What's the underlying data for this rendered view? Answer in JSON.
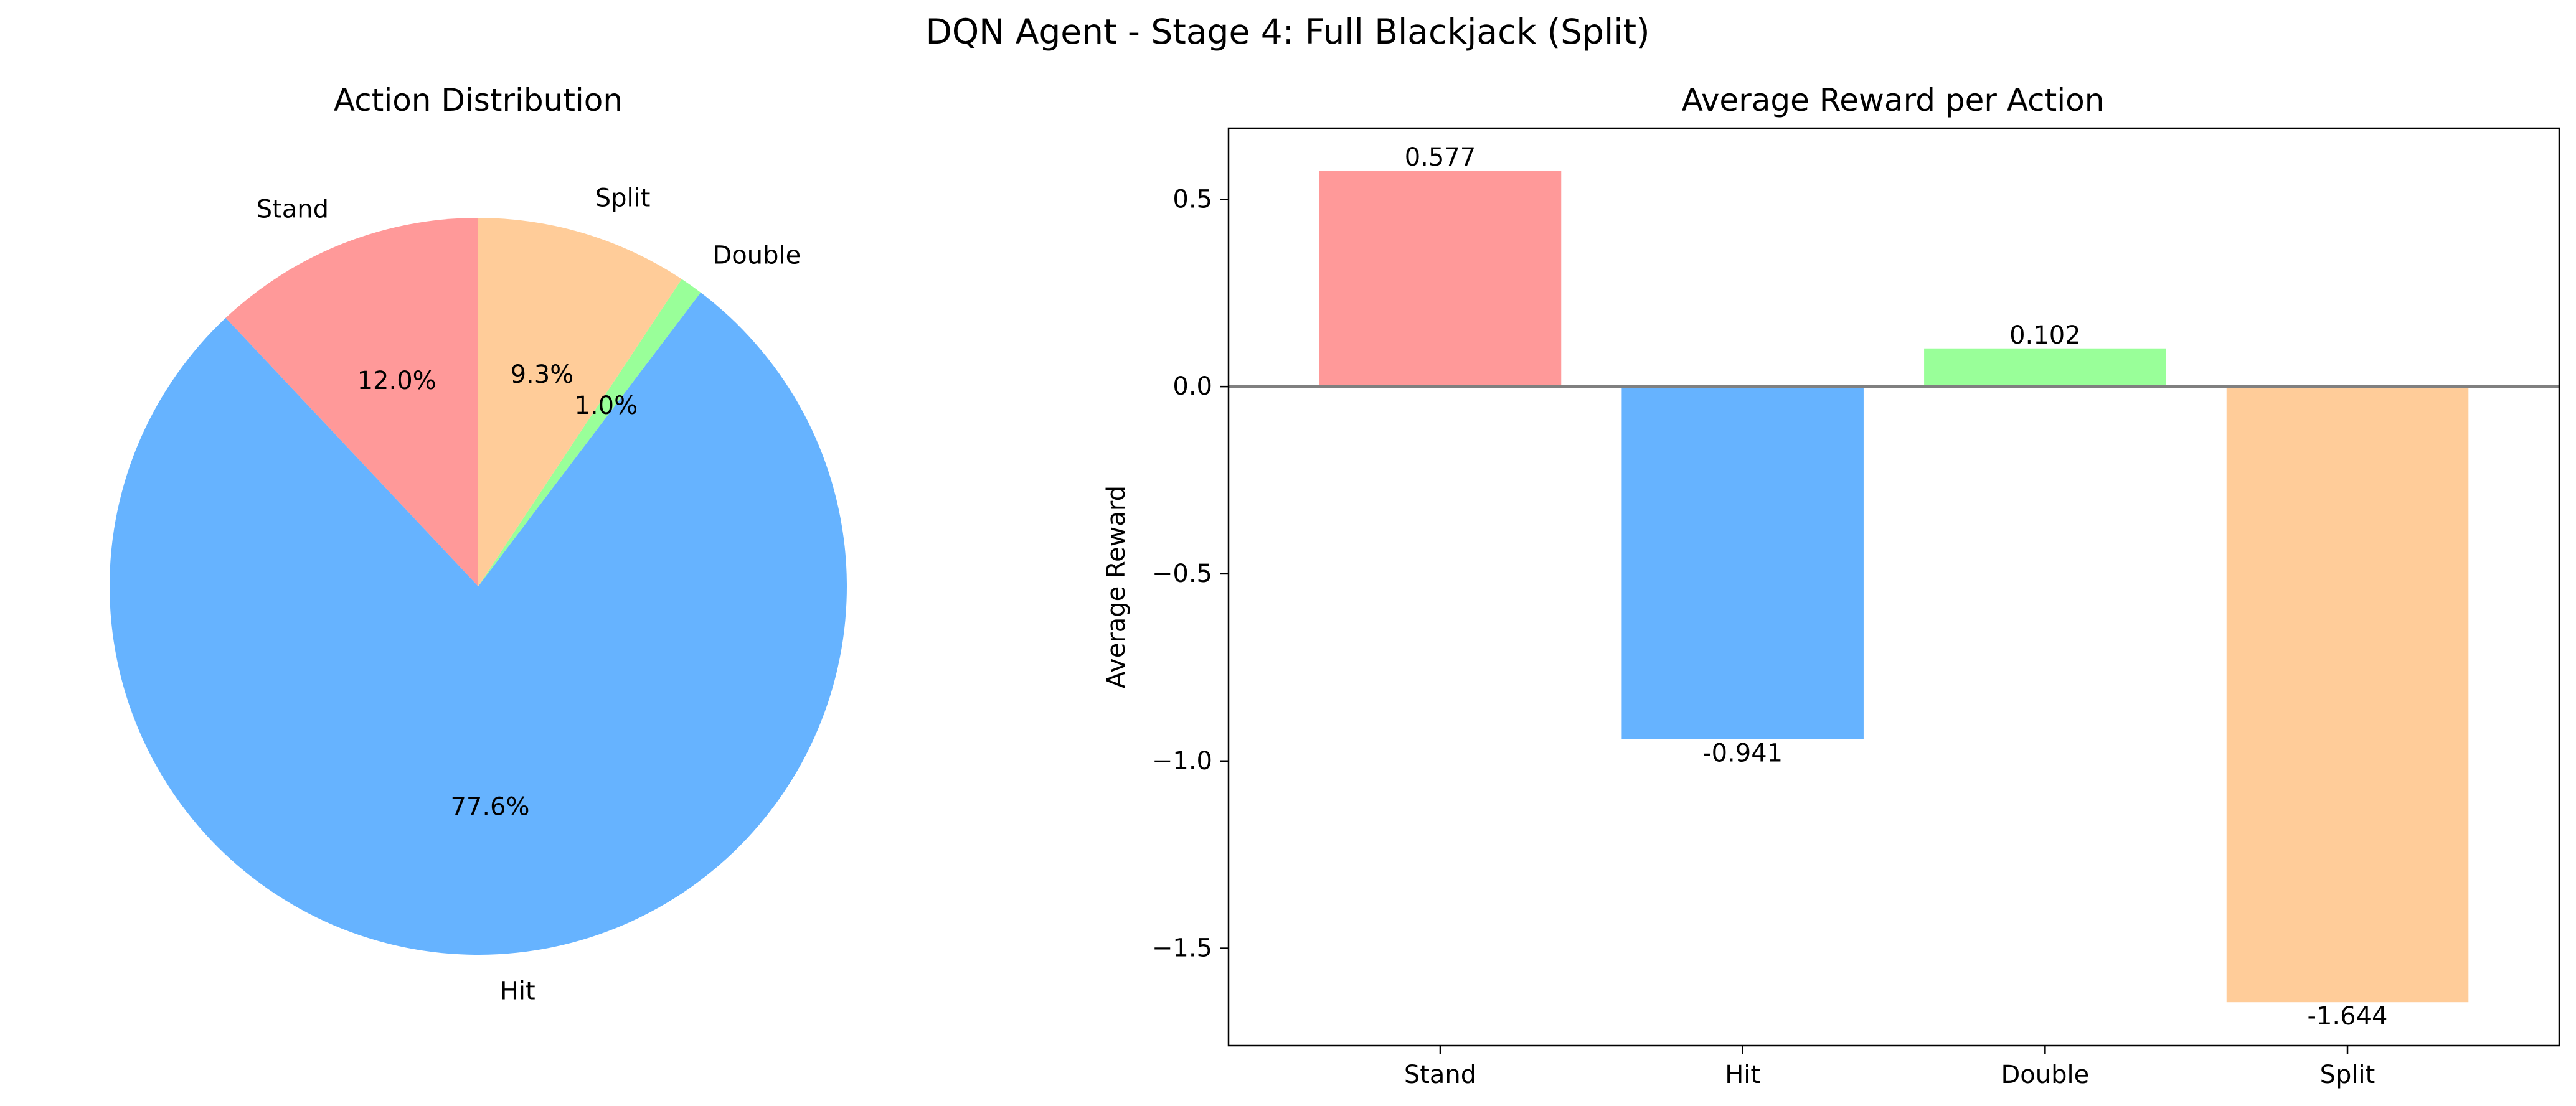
{
  "figure": {
    "title": "DQN Agent - Stage 4: Full Blackjack (Split)"
  },
  "chart_data": [
    {
      "type": "pie",
      "title": "Action Distribution",
      "labels": [
        "Stand",
        "Hit",
        "Double",
        "Split"
      ],
      "values": [
        12.0,
        77.6,
        1.0,
        9.3
      ],
      "value_labels": [
        "12.0%",
        "77.6%",
        "1.0%",
        "9.3%"
      ],
      "colors": [
        "#ff9999",
        "#66b3ff",
        "#99ff99",
        "#ffcc99"
      ],
      "start_angle_deg": 90,
      "direction": "counterclockwise",
      "legend": "none"
    },
    {
      "type": "bar",
      "title": "Average Reward per Action",
      "categories": [
        "Stand",
        "Hit",
        "Double",
        "Split"
      ],
      "values": [
        0.577,
        -0.941,
        0.102,
        -1.644
      ],
      "value_labels": [
        "0.577",
        "-0.941",
        "0.102",
        "-1.644"
      ],
      "colors": [
        "#ff9999",
        "#66b3ff",
        "#99ff99",
        "#ffcc99"
      ],
      "xlabel": "",
      "ylabel": "Average Reward",
      "ylim": [
        -1.76,
        0.69
      ],
      "yticks": [
        0.5,
        0.0,
        -0.5,
        -1.0,
        -1.5
      ],
      "ytick_labels": [
        "0.5",
        "0.0",
        "−0.5",
        "−1.0",
        "−1.5"
      ],
      "reference_line_y": 0,
      "grid": false,
      "legend": "none"
    }
  ]
}
